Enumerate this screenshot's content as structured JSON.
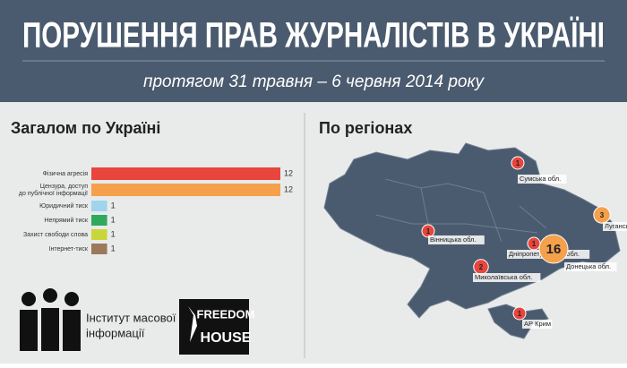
{
  "header": {
    "title": "ПОРУШЕННЯ ПРАВ ЖУРНАЛІСТІВ В УКРАЇНІ",
    "subtitle": "протягом 31 травня – 6 червня 2014 року"
  },
  "chart_data": {
    "type": "bar",
    "title": "Загалом по Україні",
    "categories": [
      "Фізична агресія",
      "Цензура, доступ до публічної інформації",
      "Юридичний тиск",
      "Непрямий тиск",
      "Захист свободи слова",
      "Інтернет-тиск"
    ],
    "values": [
      12,
      12,
      1,
      1,
      1,
      1
    ],
    "colors": [
      "#e8453c",
      "#f5a04a",
      "#9fd3ee",
      "#2eaa5c",
      "#c8d63a",
      "#9b7a5a"
    ],
    "xlim": [
      0,
      12
    ]
  },
  "map": {
    "title": "По регіонах",
    "regions": [
      {
        "label": "Сумська обл.",
        "value": 1
      },
      {
        "label": "Луганська обл.",
        "value": 3
      },
      {
        "label": "Вінницька обл.",
        "value": 1
      },
      {
        "label": "Дніпропетровська обл.",
        "value": 1
      },
      {
        "label": "Донецька обл.",
        "value": 16
      },
      {
        "label": "Миколаївська обл.",
        "value": 2
      },
      {
        "label": "АР Крим",
        "value": 1
      }
    ]
  },
  "logos": {
    "imi": [
      "Інститут масової",
      "інформації"
    ],
    "freedom_house": [
      "FREEDOM",
      "HOUSE"
    ]
  }
}
